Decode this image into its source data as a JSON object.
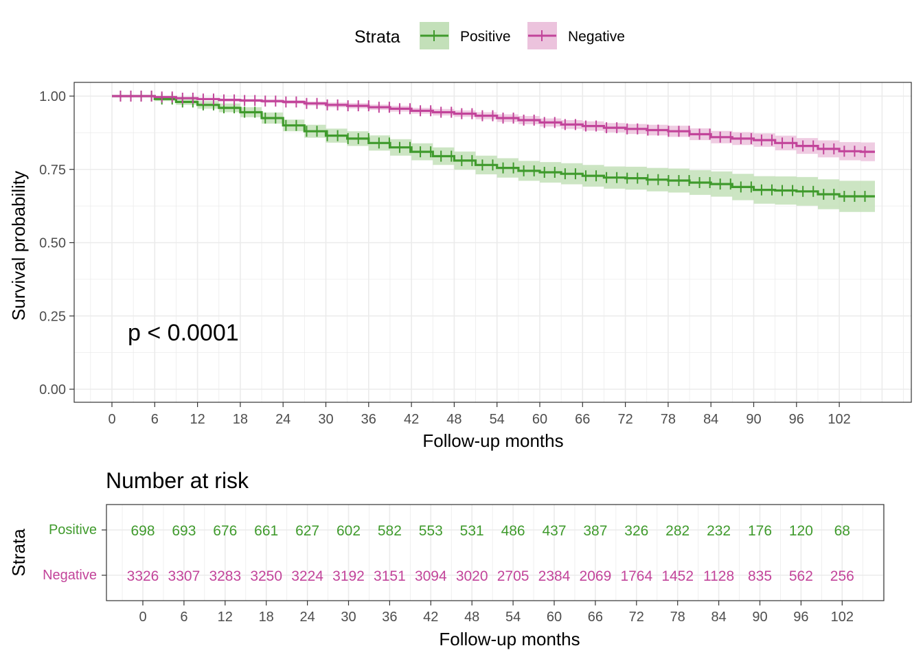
{
  "legend": {
    "title": "Strata",
    "items": [
      {
        "label": "Positive",
        "color": "#3f9a2c"
      },
      {
        "label": "Negative",
        "color": "#c2449a"
      }
    ]
  },
  "annotation": "p < 0.0001",
  "risk_table": {
    "title": "Number at risk",
    "ylabel": "Strata",
    "xlabel": "Follow-up months"
  },
  "colors": {
    "positive": "#3f9a2c",
    "negative": "#c2449a",
    "positive_band": "#c3e0b9",
    "negative_band": "#ecc3dd"
  },
  "chart_data": [
    {
      "type": "line",
      "subtype": "kaplan-meier survival curve with confidence bands and censor marks",
      "title": "",
      "xlabel": "Follow-up months",
      "ylabel": "Survival probability",
      "xlim": [
        0,
        108
      ],
      "ylim": [
        0,
        1
      ],
      "x_ticks": [
        0,
        6,
        12,
        18,
        24,
        30,
        36,
        42,
        48,
        54,
        60,
        66,
        72,
        78,
        84,
        90,
        96,
        102
      ],
      "y_ticks": [
        "0.00",
        "0.25",
        "0.50",
        "0.75",
        "1.00"
      ],
      "grid": true,
      "legend_position": "top",
      "series": [
        {
          "name": "Positive",
          "x": [
            0,
            3,
            6,
            9,
            12,
            15,
            18,
            21,
            24,
            27,
            30,
            33,
            36,
            39,
            42,
            45,
            48,
            51,
            54,
            57,
            60,
            63,
            66,
            69,
            72,
            75,
            78,
            81,
            84,
            87,
            90,
            93,
            96,
            99,
            102,
            105,
            107
          ],
          "values": [
            1.0,
            1.0,
            0.99,
            0.98,
            0.97,
            0.96,
            0.945,
            0.925,
            0.9,
            0.88,
            0.865,
            0.855,
            0.84,
            0.825,
            0.81,
            0.795,
            0.78,
            0.765,
            0.755,
            0.745,
            0.74,
            0.735,
            0.728,
            0.722,
            0.72,
            0.715,
            0.712,
            0.705,
            0.7,
            0.69,
            0.68,
            0.678,
            0.675,
            0.665,
            0.658,
            0.658,
            0.658
          ],
          "lower": [
            1.0,
            0.997,
            0.983,
            0.97,
            0.957,
            0.945,
            0.928,
            0.906,
            0.88,
            0.858,
            0.841,
            0.83,
            0.814,
            0.797,
            0.781,
            0.765,
            0.749,
            0.733,
            0.722,
            0.711,
            0.705,
            0.699,
            0.691,
            0.684,
            0.681,
            0.675,
            0.671,
            0.663,
            0.657,
            0.645,
            0.633,
            0.63,
            0.626,
            0.614,
            0.605,
            0.605,
            0.605
          ],
          "upper": [
            1.0,
            1.0,
            0.997,
            0.99,
            0.983,
            0.975,
            0.962,
            0.944,
            0.92,
            0.902,
            0.889,
            0.88,
            0.866,
            0.853,
            0.839,
            0.825,
            0.811,
            0.797,
            0.788,
            0.779,
            0.775,
            0.771,
            0.765,
            0.76,
            0.759,
            0.755,
            0.753,
            0.747,
            0.743,
            0.735,
            0.727,
            0.726,
            0.724,
            0.716,
            0.711,
            0.711,
            0.711
          ]
        },
        {
          "name": "Negative",
          "x": [
            0,
            3,
            6,
            9,
            12,
            15,
            18,
            21,
            24,
            27,
            30,
            33,
            36,
            39,
            42,
            45,
            48,
            51,
            54,
            57,
            60,
            63,
            66,
            69,
            72,
            75,
            78,
            81,
            84,
            87,
            90,
            93,
            96,
            99,
            102,
            105,
            107
          ],
          "values": [
            1.0,
            1.0,
            0.997,
            0.993,
            0.99,
            0.987,
            0.985,
            0.983,
            0.98,
            0.975,
            0.97,
            0.967,
            0.962,
            0.957,
            0.95,
            0.945,
            0.94,
            0.933,
            0.925,
            0.918,
            0.91,
            0.903,
            0.898,
            0.892,
            0.888,
            0.884,
            0.88,
            0.87,
            0.86,
            0.855,
            0.85,
            0.84,
            0.83,
            0.82,
            0.812,
            0.81,
            0.81
          ],
          "lower": [
            1.0,
            0.998,
            0.995,
            0.99,
            0.986,
            0.982,
            0.98,
            0.977,
            0.974,
            0.968,
            0.962,
            0.958,
            0.953,
            0.947,
            0.94,
            0.934,
            0.929,
            0.921,
            0.912,
            0.904,
            0.896,
            0.888,
            0.882,
            0.876,
            0.871,
            0.866,
            0.861,
            0.85,
            0.839,
            0.833,
            0.827,
            0.815,
            0.803,
            0.791,
            0.781,
            0.778,
            0.778
          ],
          "upper": [
            1.0,
            1.0,
            0.999,
            0.996,
            0.994,
            0.992,
            0.99,
            0.989,
            0.986,
            0.982,
            0.978,
            0.976,
            0.971,
            0.967,
            0.96,
            0.956,
            0.951,
            0.945,
            0.938,
            0.932,
            0.924,
            0.918,
            0.914,
            0.908,
            0.905,
            0.902,
            0.899,
            0.89,
            0.881,
            0.877,
            0.873,
            0.865,
            0.857,
            0.849,
            0.843,
            0.842,
            0.842
          ]
        }
      ]
    },
    {
      "type": "table",
      "title": "Number at risk",
      "xlabel": "Follow-up months",
      "ylabel": "Strata",
      "x_ticks": [
        0,
        6,
        12,
        18,
        24,
        30,
        36,
        42,
        48,
        54,
        60,
        66,
        72,
        78,
        84,
        90,
        96,
        102
      ],
      "rows": [
        {
          "name": "Positive",
          "values": [
            698,
            693,
            676,
            661,
            627,
            602,
            582,
            553,
            531,
            486,
            437,
            387,
            326,
            282,
            232,
            176,
            120,
            68
          ]
        },
        {
          "name": "Negative",
          "values": [
            3326,
            3307,
            3283,
            3250,
            3224,
            3192,
            3151,
            3094,
            3020,
            2705,
            2384,
            2069,
            1764,
            1452,
            1128,
            835,
            562,
            256
          ]
        }
      ]
    }
  ]
}
